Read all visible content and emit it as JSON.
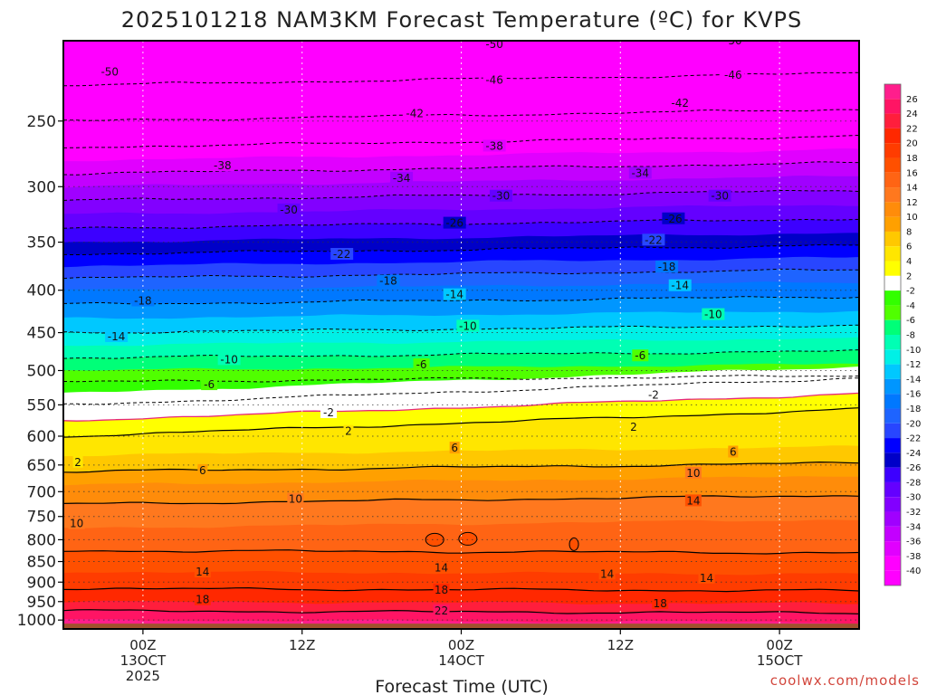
{
  "chart_data": {
    "type": "heatmap",
    "title": "2025101218 NAM3KM Forecast Temperature (ºC) for KVPS",
    "xlabel": "Forecast Time (UTC)",
    "ylabel": "",
    "y_ticks": [
      "250",
      "300",
      "350",
      "400",
      "450",
      "500",
      "550",
      "600",
      "650",
      "700",
      "750",
      "800",
      "850",
      "900",
      "950",
      "1000"
    ],
    "x_ticks": [
      {
        "hour": 6,
        "lines": [
          "00Z",
          "13OCT",
          "2025"
        ]
      },
      {
        "hour": 18,
        "lines": [
          "12Z"
        ]
      },
      {
        "hour": 30,
        "lines": [
          "00Z",
          "14OCT"
        ]
      },
      {
        "hour": 42,
        "lines": [
          "12Z"
        ]
      },
      {
        "hour": 54,
        "lines": [
          "00Z",
          "15OCT"
        ]
      }
    ],
    "xlim": [
      0,
      60
    ],
    "ylim_hpa": [
      200,
      1025
    ],
    "surface_hpa": 1010,
    "colorbar_labels": [
      "26",
      "24",
      "22",
      "20",
      "18",
      "16",
      "14",
      "12",
      "10",
      "8",
      "6",
      "4",
      "2",
      "-2",
      "-4",
      "-6",
      "-8",
      "-10",
      "-12",
      "-14",
      "-16",
      "-18",
      "-20",
      "-22",
      "-24",
      "-26",
      "-28",
      "-30",
      "-32",
      "-34",
      "-36",
      "-38",
      "-40"
    ],
    "colorbar_colors": [
      "#ff1e8c",
      "#ff1464",
      "#ff1e3c",
      "#ff2800",
      "#ff3c00",
      "#ff5000",
      "#ff6414",
      "#ff781e",
      "#ff8c0a",
      "#ffa000",
      "#ffc800",
      "#ffe600",
      "#ffff00",
      "#ffffff",
      "#32ff00",
      "#50ff00",
      "#00ff78",
      "#00ffb4",
      "#00f0e6",
      "#00c8ff",
      "#0096ff",
      "#0078ff",
      "#1e64ff",
      "#2846ff",
      "#0000ff",
      "#0000c8",
      "#3c00ff",
      "#6400ff",
      "#8200ff",
      "#a000ff",
      "#c300ff",
      "#e100ff",
      "#ff00ff"
    ],
    "temperature_profile": [
      {
        "p": 200,
        "t": -55
      },
      {
        "p": 250,
        "t": -46
      },
      {
        "p": 300,
        "t": -36
      },
      {
        "p": 350,
        "t": -28
      },
      {
        "p": 400,
        "t": -20
      },
      {
        "p": 450,
        "t": -14
      },
      {
        "p": 500,
        "t": -8
      },
      {
        "p": 550,
        "t": -2
      },
      {
        "p": 600,
        "t": 2
      },
      {
        "p": 650,
        "t": 5
      },
      {
        "p": 700,
        "t": 9
      },
      {
        "p": 750,
        "t": 11
      },
      {
        "p": 800,
        "t": 13
      },
      {
        "p": 850,
        "t": 15
      },
      {
        "p": 900,
        "t": 17
      },
      {
        "p": 950,
        "t": 20
      },
      {
        "p": 1000,
        "t": 24
      },
      {
        "p": 1025,
        "t": 26
      }
    ],
    "isotherm_labels": [
      {
        "text": "-50",
        "hour": 3.5,
        "p": 218
      },
      {
        "text": "-50",
        "hour": 32.5,
        "p": 202
      },
      {
        "text": "-50",
        "hour": 50.5,
        "p": 200
      },
      {
        "text": "-46",
        "hour": 32.5,
        "p": 223
      },
      {
        "text": "-46",
        "hour": 50.5,
        "p": 220
      },
      {
        "text": "-42",
        "hour": 26.5,
        "p": 245
      },
      {
        "text": "-42",
        "hour": 46.5,
        "p": 238
      },
      {
        "text": "-38",
        "hour": 12,
        "p": 283
      },
      {
        "text": "-38",
        "hour": 32.5,
        "p": 268
      },
      {
        "text": "-34",
        "hour": 25.5,
        "p": 293
      },
      {
        "text": "-34",
        "hour": 43.5,
        "p": 289
      },
      {
        "text": "-30",
        "hour": 17,
        "p": 320
      },
      {
        "text": "-30",
        "hour": 33,
        "p": 308
      },
      {
        "text": "-30",
        "hour": 49.5,
        "p": 308
      },
      {
        "text": "-26",
        "hour": 29.5,
        "p": 332
      },
      {
        "text": "-26",
        "hour": 46,
        "p": 328
      },
      {
        "text": "-22",
        "hour": 21,
        "p": 362
      },
      {
        "text": "-22",
        "hour": 44.5,
        "p": 348
      },
      {
        "text": "-18",
        "hour": 24.5,
        "p": 390
      },
      {
        "text": "-18",
        "hour": 45.5,
        "p": 375
      },
      {
        "text": "-18",
        "hour": 6,
        "p": 412
      },
      {
        "text": "-14",
        "hour": 29.5,
        "p": 405
      },
      {
        "text": "-14",
        "hour": 46.5,
        "p": 395
      },
      {
        "text": "-14",
        "hour": 4,
        "p": 455
      },
      {
        "text": "-10",
        "hour": 30.5,
        "p": 442
      },
      {
        "text": "-10",
        "hour": 49,
        "p": 428
      },
      {
        "text": "-10",
        "hour": 12.5,
        "p": 485
      },
      {
        "text": "-6",
        "hour": 27,
        "p": 492
      },
      {
        "text": "-6",
        "hour": 43.5,
        "p": 480
      },
      {
        "text": "-6",
        "hour": 11,
        "p": 520
      },
      {
        "text": "-2",
        "hour": 20,
        "p": 562
      },
      {
        "text": "-2",
        "hour": 44.5,
        "p": 535
      },
      {
        "text": "2",
        "hour": 21.5,
        "p": 592
      },
      {
        "text": "2",
        "hour": 43,
        "p": 585
      },
      {
        "text": "2",
        "hour": 1.1,
        "p": 645
      },
      {
        "text": "6",
        "hour": 29.5,
        "p": 620
      },
      {
        "text": "6",
        "hour": 50.5,
        "p": 627
      },
      {
        "text": "6",
        "hour": 10.5,
        "p": 660
      },
      {
        "text": "10",
        "hour": 17.5,
        "p": 715
      },
      {
        "text": "10",
        "hour": 47.5,
        "p": 665
      },
      {
        "text": "10",
        "hour": 1,
        "p": 765
      },
      {
        "text": "14",
        "hour": 28.5,
        "p": 865
      },
      {
        "text": "14",
        "hour": 47.5,
        "p": 718
      },
      {
        "text": "14",
        "hour": 10.5,
        "p": 875
      },
      {
        "text": "14",
        "hour": 41,
        "p": 880
      },
      {
        "text": "14",
        "hour": 48.5,
        "p": 890
      },
      {
        "text": "18",
        "hour": 10.5,
        "p": 945
      },
      {
        "text": "18",
        "hour": 28.5,
        "p": 920
      },
      {
        "text": "18",
        "hour": 45,
        "p": 955
      },
      {
        "text": "22",
        "hour": 28.5,
        "p": 975
      }
    ],
    "credit": "coolwx.com/models"
  }
}
